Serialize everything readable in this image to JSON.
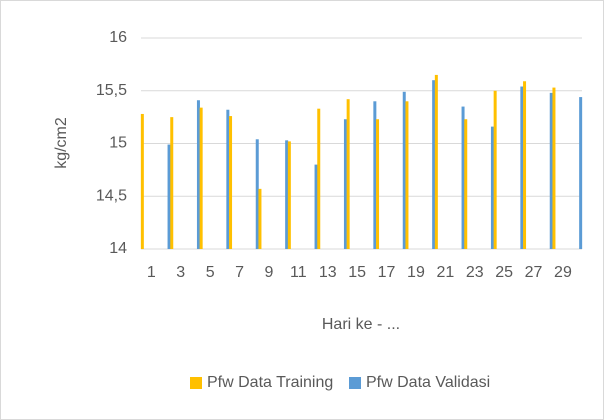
{
  "chart_data": {
    "type": "bar",
    "x_label": "Hari ke - ...",
    "y_label": "kg/cm2",
    "categories": [
      1,
      null,
      3,
      null,
      5,
      null,
      7,
      null,
      9,
      null,
      11,
      null,
      13,
      null,
      15,
      null,
      17,
      null,
      19,
      null,
      21,
      null,
      23,
      null,
      25,
      null,
      27,
      null,
      29,
      null
    ],
    "series": [
      {
        "name": "Pfw Data Training",
        "color": "#ffc000",
        "values": [
          15.28,
          null,
          15.25,
          null,
          15.34,
          null,
          15.26,
          null,
          14.57,
          null,
          15.02,
          null,
          15.33,
          null,
          15.42,
          null,
          15.23,
          null,
          15.4,
          null,
          15.65,
          null,
          15.23,
          null,
          15.5,
          null,
          15.59,
          null,
          15.53,
          null
        ]
      },
      {
        "name": "Pfw Data Validasi",
        "color": "#5b9bd5",
        "values": [
          null,
          14.99,
          null,
          15.41,
          null,
          15.32,
          null,
          15.04,
          null,
          15.03,
          null,
          14.8,
          null,
          15.23,
          null,
          15.4,
          null,
          15.49,
          null,
          15.6,
          null,
          15.35,
          null,
          15.16,
          null,
          15.54,
          null,
          15.48,
          null,
          15.44
        ]
      }
    ],
    "ylim": [
      14,
      16
    ],
    "yticks": [
      14,
      {
        "value": 14.5,
        "label": "14,5"
      },
      15,
      {
        "value": 15.5,
        "label": "15,5"
      },
      16
    ],
    "grid": true,
    "legend": "bottom"
  }
}
